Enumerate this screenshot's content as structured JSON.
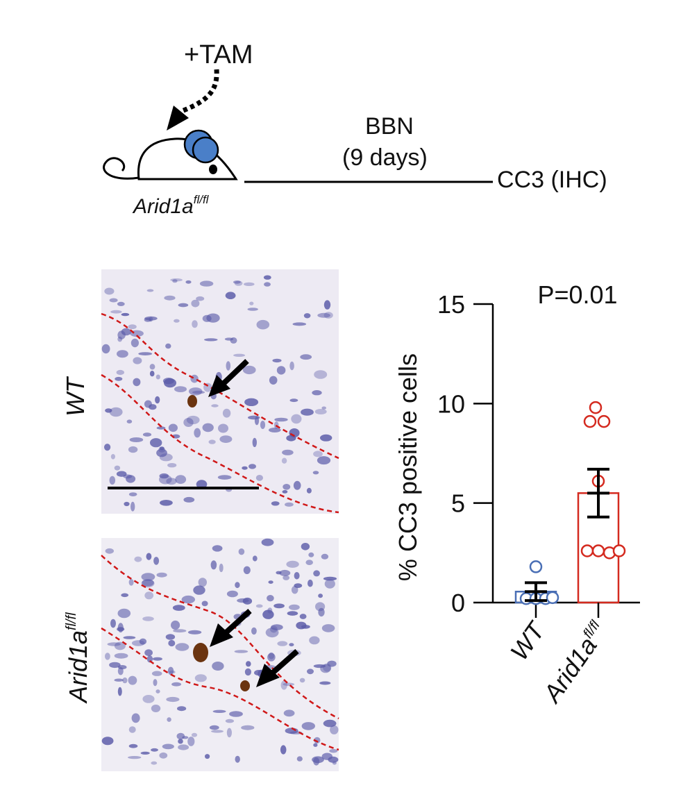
{
  "schematic": {
    "treatment_label": "+TAM",
    "bbn_label": "BBN",
    "bbn_duration": "(9 days)",
    "endpoint_label": "CC3 (IHC)",
    "mouse_genotype_base": "Arid1a",
    "mouse_genotype_sup": "fl/fl"
  },
  "micrographs": {
    "row_labels": [
      "WT",
      "Arid1a"
    ],
    "row_label_sup": [
      "",
      "fl/fl"
    ]
  },
  "colors": {
    "wt": "#4a6fb5",
    "ko": "#d42a1f",
    "outline": "#d01818",
    "nuclei": "#5a5aa8",
    "cc3_stain": "#6b3410"
  },
  "chart_data": {
    "type": "bar",
    "title": "P=0.01",
    "ylabel": "% CC3 positive cells",
    "ylim": [
      0,
      15
    ],
    "yticks": [
      0,
      5,
      10,
      15
    ],
    "categories": [
      "WT",
      "Arid1a"
    ],
    "category_sup": [
      "",
      "fl/fl"
    ],
    "series": [
      {
        "mean": 0.55,
        "sem": 0.45,
        "points": [
          0.2,
          0.2,
          0.2,
          0.25,
          1.8
        ],
        "color": "#4a6fb5"
      },
      {
        "mean": 5.5,
        "sem": 1.2,
        "points": [
          9.8,
          9.1,
          9.1,
          6.1,
          2.6,
          2.5,
          2.6,
          2.6
        ],
        "color": "#d42a1f"
      }
    ]
  }
}
